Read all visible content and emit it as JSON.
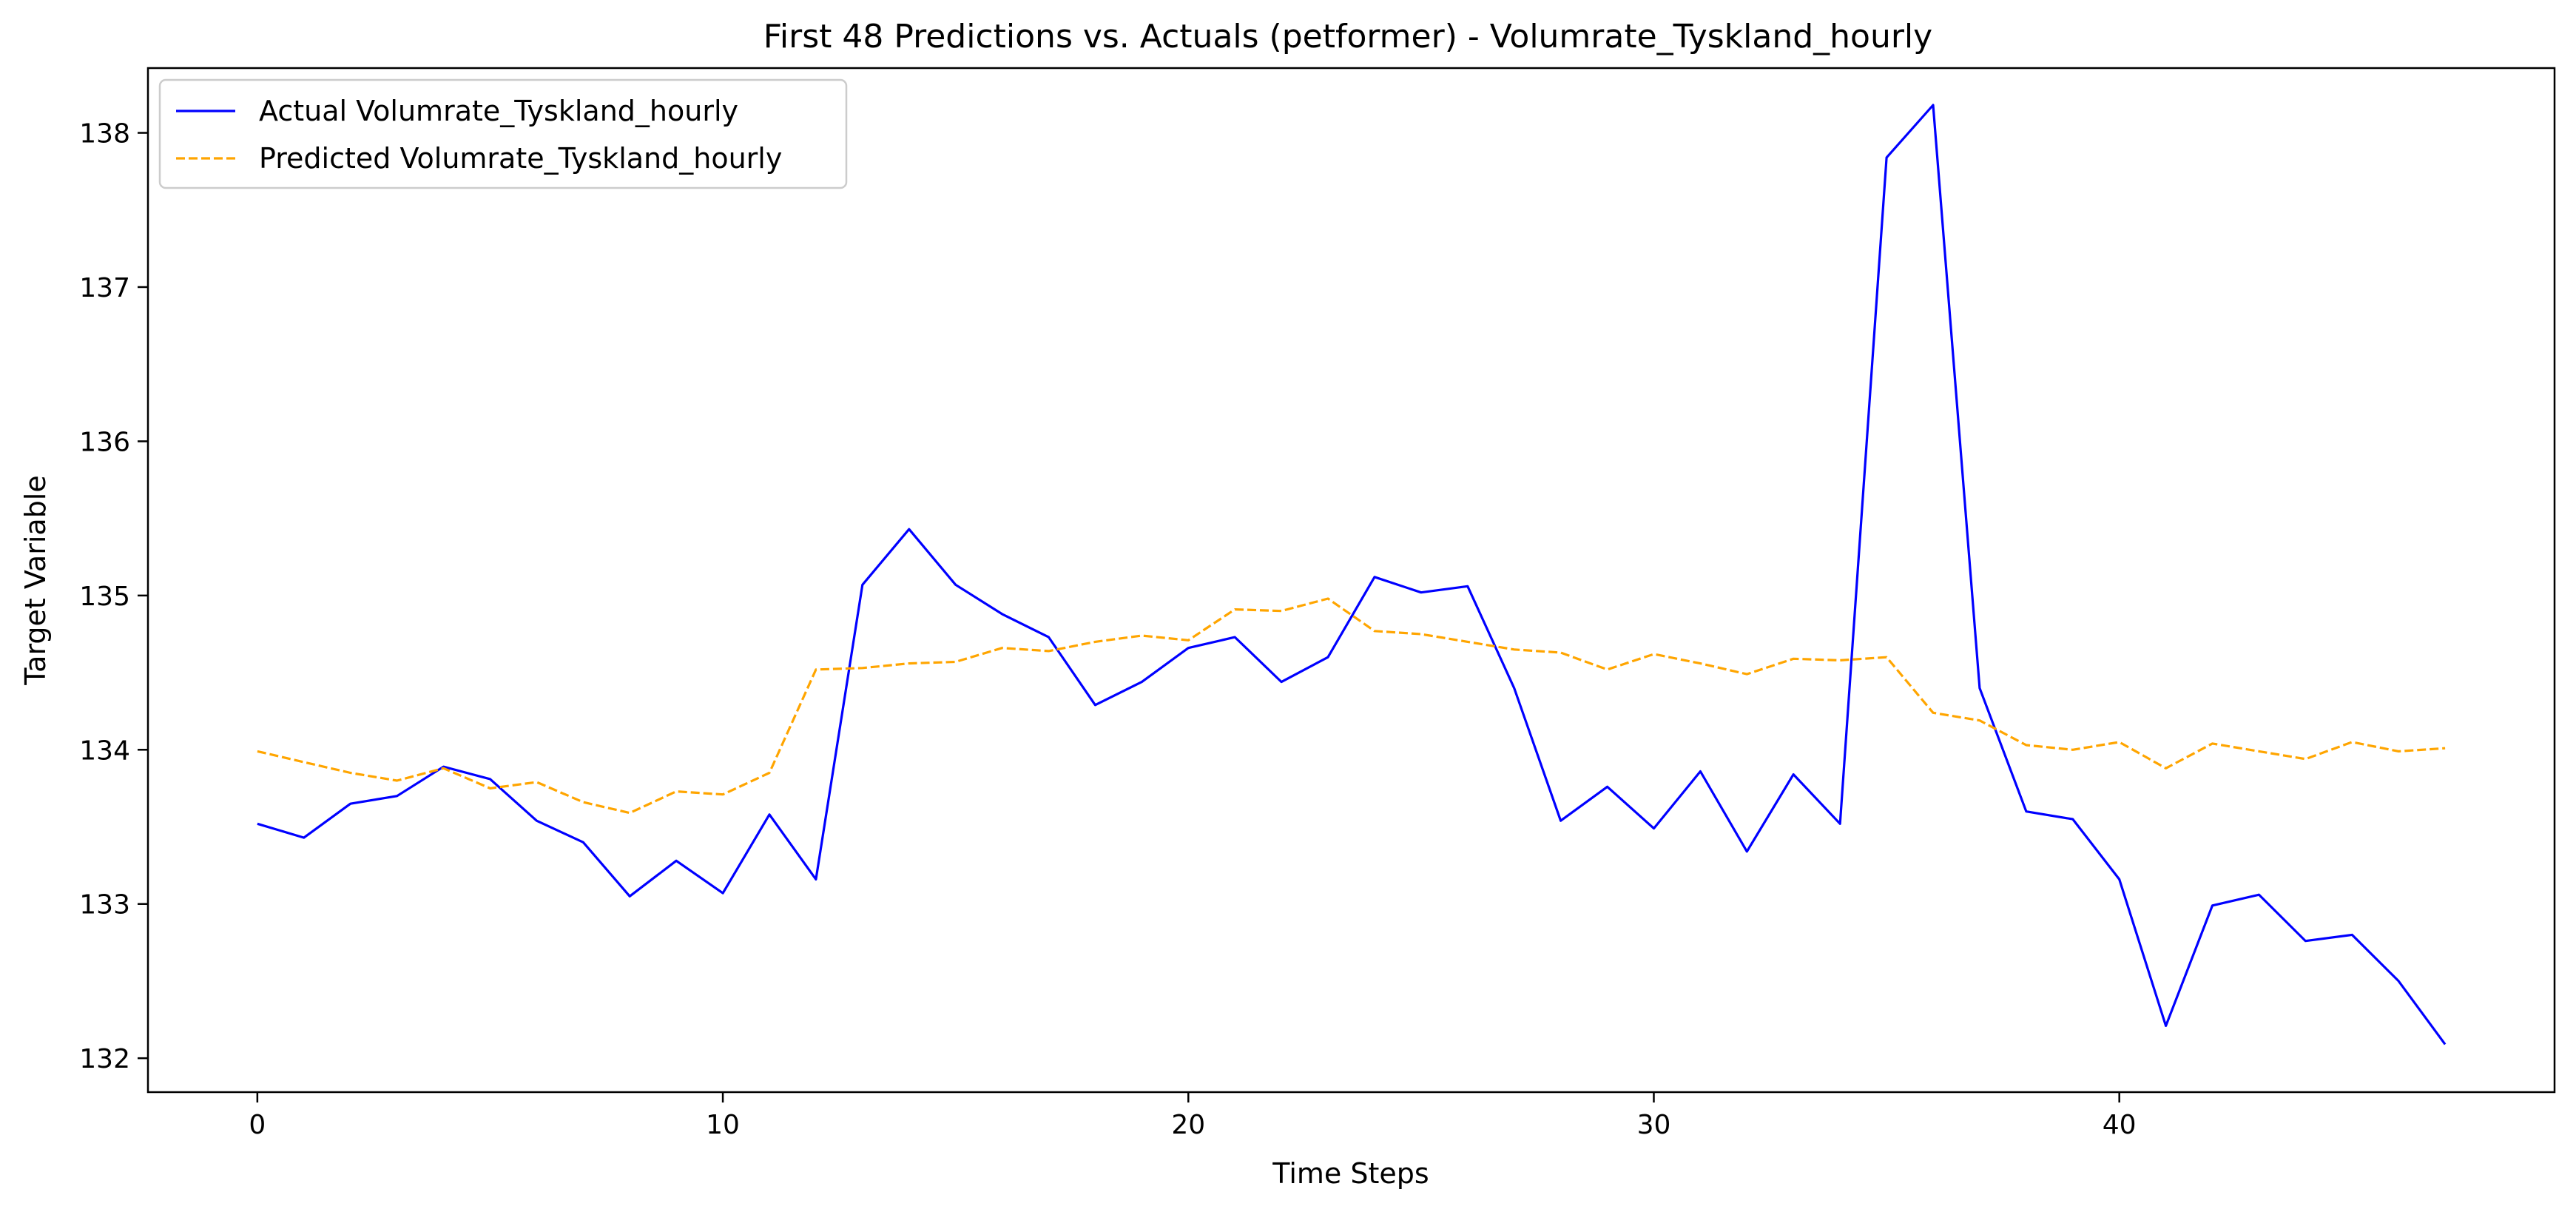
{
  "chart_data": {
    "type": "line",
    "title": "First 48 Predictions vs. Actuals (petformer) - Volumrate_Tyskland_hourly",
    "xlabel": "Time Steps",
    "ylabel": "Target Variable",
    "xlim": [
      -2.35,
      49.35
    ],
    "ylim": [
      131.78,
      138.42
    ],
    "xticks": [
      0,
      10,
      20,
      30,
      40
    ],
    "yticks": [
      132,
      133,
      134,
      135,
      136,
      137,
      138
    ],
    "grid": false,
    "legend_position": "top-left",
    "series": [
      {
        "name": "Actual Volumrate_Tyskland_hourly",
        "color": "#0000ff",
        "style": "solid",
        "x": [
          0,
          1,
          2,
          3,
          4,
          5,
          6,
          7,
          8,
          9,
          10,
          11,
          12,
          13,
          14,
          15,
          16,
          17,
          18,
          19,
          20,
          21,
          22,
          23,
          24,
          25,
          26,
          27,
          28,
          29,
          30,
          31,
          32,
          33,
          34,
          35,
          36,
          37,
          38,
          39,
          40,
          41,
          42,
          43,
          44,
          45,
          46,
          47
        ],
        "values": [
          133.52,
          133.43,
          133.65,
          133.7,
          133.89,
          133.81,
          133.54,
          133.4,
          133.05,
          133.28,
          133.07,
          133.58,
          133.16,
          135.07,
          135.43,
          135.07,
          134.88,
          134.73,
          134.29,
          134.44,
          134.66,
          134.73,
          134.44,
          134.6,
          135.12,
          135.02,
          135.06,
          134.4,
          133.54,
          133.76,
          133.49,
          133.86,
          133.34,
          133.84,
          133.52,
          137.84,
          138.18,
          134.4,
          133.6,
          133.55,
          133.16,
          132.21,
          132.99,
          133.06,
          132.76,
          132.8,
          132.5,
          132.09
        ]
      },
      {
        "name": "Predicted Volumrate_Tyskland_hourly",
        "color": "#ffa500",
        "style": "dashed",
        "x": [
          0,
          1,
          2,
          3,
          4,
          5,
          6,
          7,
          8,
          9,
          10,
          11,
          12,
          13,
          14,
          15,
          16,
          17,
          18,
          19,
          20,
          21,
          22,
          23,
          24,
          25,
          26,
          27,
          28,
          29,
          30,
          31,
          32,
          33,
          34,
          35,
          36,
          37,
          38,
          39,
          40,
          41,
          42,
          43,
          44,
          45,
          46,
          47
        ],
        "values": [
          133.99,
          133.92,
          133.85,
          133.8,
          133.88,
          133.75,
          133.79,
          133.66,
          133.59,
          133.73,
          133.71,
          133.85,
          134.52,
          134.53,
          134.56,
          134.57,
          134.66,
          134.64,
          134.7,
          134.74,
          134.71,
          134.91,
          134.9,
          134.98,
          134.77,
          134.75,
          134.7,
          134.65,
          134.63,
          134.52,
          134.62,
          134.56,
          134.49,
          134.59,
          134.58,
          134.6,
          134.24,
          134.19,
          134.03,
          134.0,
          134.05,
          133.88,
          134.04,
          133.99,
          133.94,
          134.05,
          133.99,
          134.01
        ]
      }
    ]
  }
}
